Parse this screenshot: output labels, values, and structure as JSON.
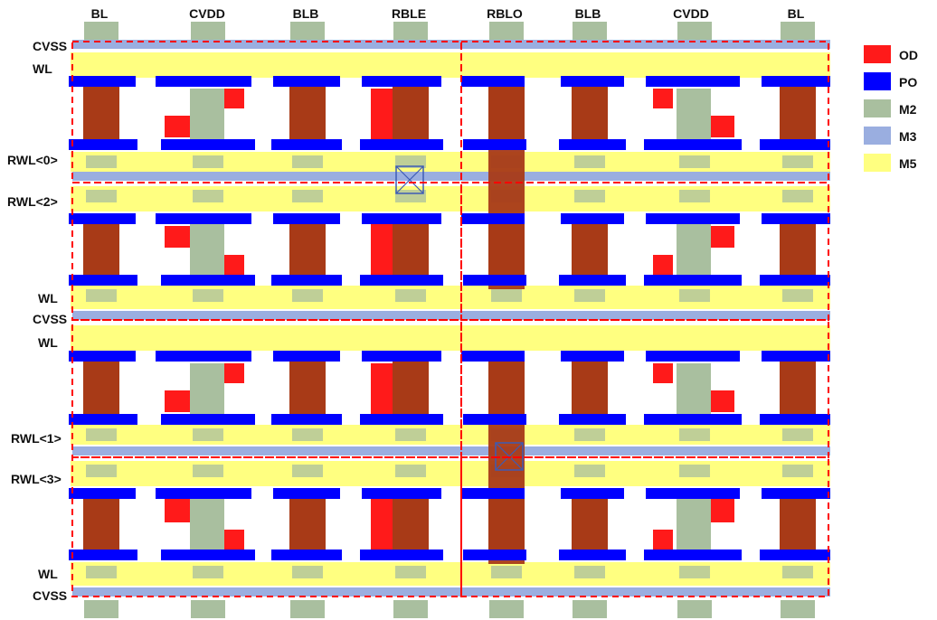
{
  "column_labels": [
    "BL",
    "CVDD",
    "BLB",
    "RBLE",
    "RBLO",
    "BLB",
    "CVDD",
    "BL"
  ],
  "row_labels": [
    "CVSS",
    "WL",
    "RWL<0>",
    "RWL<2>",
    "WL",
    "CVSS",
    "WL",
    "RWL<1>",
    "RWL<3>",
    "WL",
    "CVSS"
  ],
  "legend": [
    {
      "label": "OD",
      "color": "#ff1a1a"
    },
    {
      "label": "PO",
      "color": "#0000ff"
    },
    {
      "label": "M2",
      "color": "#a9bf9f"
    },
    {
      "label": "M3",
      "color": "#9aaee0"
    },
    {
      "label": "M5",
      "color": "#ffff80"
    }
  ],
  "colors": {
    "od": "#ff1a1a",
    "po": "#0000ff",
    "m2": "#a9bf9f",
    "m3": "#9aaee0",
    "m5": "#ffff80",
    "device": "#a83a17",
    "boundary": "#ff0000",
    "via": "#3d5bb5"
  }
}
